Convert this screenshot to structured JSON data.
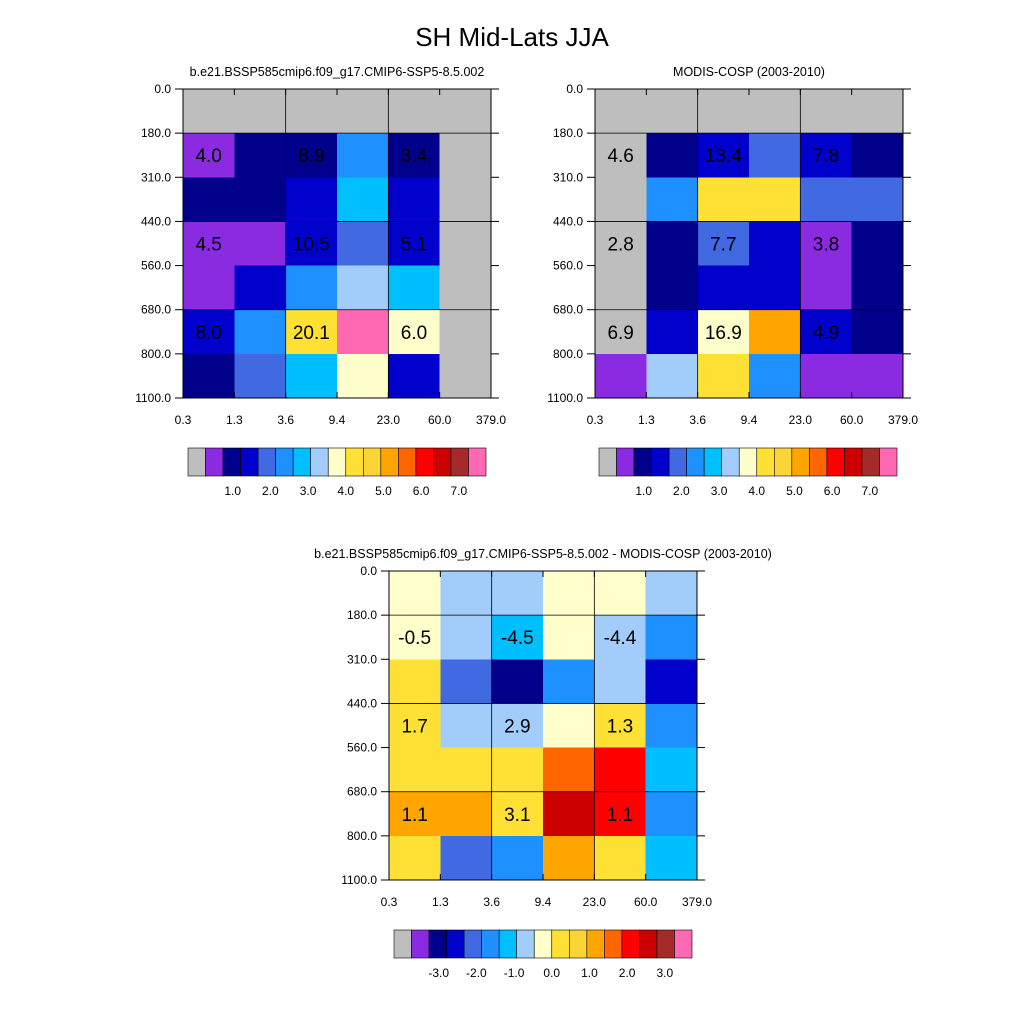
{
  "title": "SH Mid-Lats JJA",
  "colors": {
    "palette": [
      "#bebebe",
      "#8a2be2",
      "#00008b",
      "#0000cd",
      "#4169e1",
      "#1e90ff",
      "#00bfff",
      "#a2cdfa",
      "#ffffcc",
      "#ffe135",
      "#fbd438",
      "#ffa500",
      "#ff6600",
      "#ff0000",
      "#cd0000",
      "#a52a2a",
      "#ff69b4"
    ],
    "missing": "#bebebe"
  },
  "chart_data": [
    {
      "id": "model",
      "type": "heatmap",
      "title": "b.e21.BSSP585cmip6.f09_g17.CMIP6-SSP5-8.5.002",
      "x_ticks": [
        "0.3",
        "1.3",
        "3.6",
        "9.4",
        "23.0",
        "60.0",
        "379.0"
      ],
      "y_ticks": [
        "0.0",
        "180.0",
        "310.0",
        "440.0",
        "560.0",
        "680.0",
        "800.0",
        "1100.0"
      ],
      "cells": [
        [
          0,
          0,
          0,
          0,
          0,
          0
        ],
        [
          1,
          2,
          2,
          5,
          2,
          0
        ],
        [
          2,
          2,
          3,
          6,
          3,
          0
        ],
        [
          1,
          1,
          3,
          4,
          3,
          0
        ],
        [
          1,
          3,
          5,
          7,
          6,
          0
        ],
        [
          3,
          5,
          9,
          16,
          8,
          0
        ],
        [
          2,
          4,
          6,
          8,
          3,
          0
        ]
      ],
      "annotations": [
        {
          "text": "4.0",
          "col": 0.5,
          "row": 1.5
        },
        {
          "text": "8.9",
          "col": 2.5,
          "row": 1.5
        },
        {
          "text": "3.4",
          "col": 4.5,
          "row": 1.5
        },
        {
          "text": "4.5",
          "col": 0.5,
          "row": 3.5
        },
        {
          "text": "10.5",
          "col": 2.5,
          "row": 3.5
        },
        {
          "text": "5.1",
          "col": 4.5,
          "row": 3.5
        },
        {
          "text": "8.0",
          "col": 0.5,
          "row": 5.5
        },
        {
          "text": "20.1",
          "col": 2.5,
          "row": 5.5
        },
        {
          "text": "6.0",
          "col": 4.5,
          "row": 5.5
        }
      ],
      "colorbar_labels": [
        "1.0",
        "2.0",
        "3.0",
        "4.0",
        "5.0",
        "6.0",
        "7.0"
      ]
    },
    {
      "id": "obs",
      "type": "heatmap",
      "title": "MODIS-COSP (2003-2010)",
      "x_ticks": [
        "0.3",
        "1.3",
        "3.6",
        "9.4",
        "23.0",
        "60.0",
        "379.0"
      ],
      "y_ticks": [
        "0.0",
        "180.0",
        "310.0",
        "440.0",
        "560.0",
        "680.0",
        "800.0",
        "1100.0"
      ],
      "cells": [
        [
          0,
          0,
          0,
          0,
          0,
          0
        ],
        [
          0,
          2,
          3,
          4,
          3,
          2
        ],
        [
          0,
          5,
          9,
          9,
          4,
          4
        ],
        [
          0,
          2,
          4,
          3,
          1,
          2
        ],
        [
          0,
          2,
          3,
          3,
          1,
          2
        ],
        [
          0,
          3,
          8,
          11,
          3,
          2
        ],
        [
          1,
          7,
          9,
          5,
          1,
          1
        ]
      ],
      "annotations": [
        {
          "text": "4.6",
          "col": 0.5,
          "row": 1.5
        },
        {
          "text": "13.4",
          "col": 2.5,
          "row": 1.5
        },
        {
          "text": "7.8",
          "col": 4.5,
          "row": 1.5
        },
        {
          "text": "2.8",
          "col": 0.5,
          "row": 3.5
        },
        {
          "text": "7.7",
          "col": 2.5,
          "row": 3.5
        },
        {
          "text": "3.8",
          "col": 4.5,
          "row": 3.5
        },
        {
          "text": "6.9",
          "col": 0.5,
          "row": 5.5
        },
        {
          "text": "16.9",
          "col": 2.5,
          "row": 5.5
        },
        {
          "text": "4.9",
          "col": 4.5,
          "row": 5.5
        }
      ],
      "colorbar_labels": [
        "1.0",
        "2.0",
        "3.0",
        "4.0",
        "5.0",
        "6.0",
        "7.0"
      ]
    },
    {
      "id": "diff",
      "type": "heatmap",
      "title": "b.e21.BSSP585cmip6.f09_g17.CMIP6-SSP5-8.5.002 - MODIS-COSP (2003-2010)",
      "x_ticks": [
        "0.3",
        "1.3",
        "3.6",
        "9.4",
        "23.0",
        "60.0",
        "379.0"
      ],
      "y_ticks": [
        "0.0",
        "180.0",
        "310.0",
        "440.0",
        "560.0",
        "680.0",
        "800.0",
        "1100.0"
      ],
      "cells": [
        [
          8,
          7,
          7,
          8,
          8,
          7
        ],
        [
          8,
          7,
          6,
          8,
          7,
          5
        ],
        [
          9,
          4,
          2,
          5,
          7,
          3
        ],
        [
          9,
          7,
          7,
          8,
          9,
          5
        ],
        [
          9,
          9,
          9,
          12,
          13,
          6
        ],
        [
          11,
          11,
          9,
          14,
          13,
          5
        ],
        [
          9,
          4,
          5,
          11,
          9,
          6
        ]
      ],
      "annotations": [
        {
          "text": "-0.5",
          "col": 0.5,
          "row": 1.5
        },
        {
          "text": "-4.5",
          "col": 2.5,
          "row": 1.5
        },
        {
          "text": "-4.4",
          "col": 4.5,
          "row": 1.5
        },
        {
          "text": "1.7",
          "col": 0.5,
          "row": 3.5
        },
        {
          "text": "2.9",
          "col": 2.5,
          "row": 3.5
        },
        {
          "text": "1.3",
          "col": 4.5,
          "row": 3.5
        },
        {
          "text": "1.1",
          "col": 0.5,
          "row": 5.5
        },
        {
          "text": "3.1",
          "col": 2.5,
          "row": 5.5
        },
        {
          "text": "1.1",
          "col": 4.5,
          "row": 5.5
        }
      ],
      "colorbar_labels": [
        "-3.0",
        "-2.0",
        "-1.0",
        "0.0",
        "1.0",
        "2.0",
        "3.0"
      ]
    }
  ]
}
